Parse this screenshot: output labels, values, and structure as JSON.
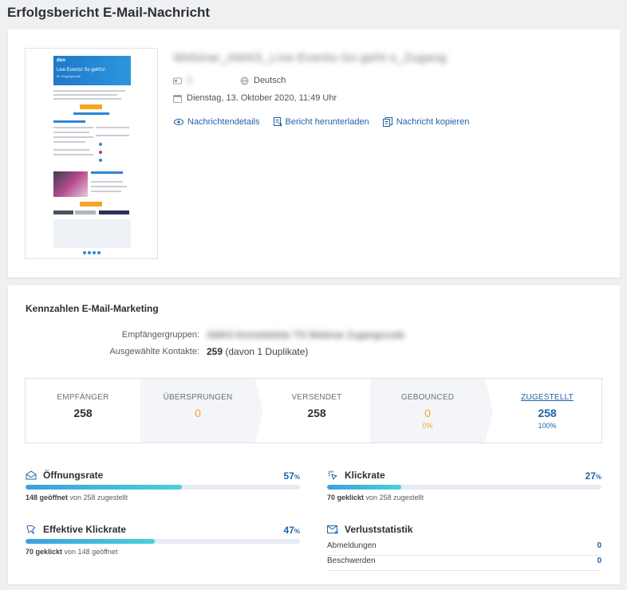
{
  "page": {
    "title": "Erfolgsbericht E-Mail-Nachricht"
  },
  "message": {
    "subject": "Webinar_AMAS_Live-Events-So-geht-s_Zugang",
    "sender": "A",
    "language": "Deutsch",
    "date": "Dienstag, 13. Oktober 2020, 11:49 Uhr",
    "links": {
      "details": "Nachrichtendetails",
      "download": "Bericht herunterladen",
      "copy": "Nachricht kopieren"
    },
    "preview": {
      "logo": "doo",
      "headline": "Live Events! So geht's!",
      "subline": "Ihr Zugangscode"
    }
  },
  "kpi": {
    "title": "Kennzahlen E-Mail-Marketing",
    "recipient_groups_label": "Empfängergruppen:",
    "recipient_groups_value": "AMAS Anmeldeliste TN Webinar Zugangscode",
    "selected_contacts_label": "Ausgewählte Kontakte:",
    "selected_contacts_value": "259",
    "selected_contacts_note": "(davon 1 Duplikate)"
  },
  "pipeline": [
    {
      "label": "EMPFÄNGER",
      "value": "258",
      "pct": ""
    },
    {
      "label": "ÜBERSPRUNGEN",
      "value": "0",
      "pct": ""
    },
    {
      "label": "VERSENDET",
      "value": "258",
      "pct": ""
    },
    {
      "label": "GEBOUNCED",
      "value": "0",
      "pct": "0%"
    },
    {
      "label": "ZUGESTELLT",
      "value": "258",
      "pct": "100%"
    }
  ],
  "metrics": {
    "open": {
      "title": "Öffnungsrate",
      "pct": "57",
      "unit": "%",
      "fraction": 0.57,
      "count": "148 geöffnet",
      "rest": "von 258 zugestellt"
    },
    "click": {
      "title": "Klickrate",
      "pct": "27",
      "unit": "%",
      "fraction": 0.27,
      "count": "70 geklickt",
      "rest": "von 258 zugestellt"
    },
    "eff": {
      "title": "Effektive Klickrate",
      "pct": "47",
      "unit": "%",
      "fraction": 0.47,
      "count": "70 geklickt",
      "rest": "von 148 geöffnet"
    },
    "loss": {
      "title": "Verluststatistik",
      "rows": [
        {
          "label": "Abmeldungen",
          "value": "0"
        },
        {
          "label": "Beschwerden",
          "value": "0"
        }
      ]
    }
  },
  "colors": {
    "accent": "#1f63a8",
    "orange": "#f5a623",
    "bar": "#3aa0e0"
  }
}
